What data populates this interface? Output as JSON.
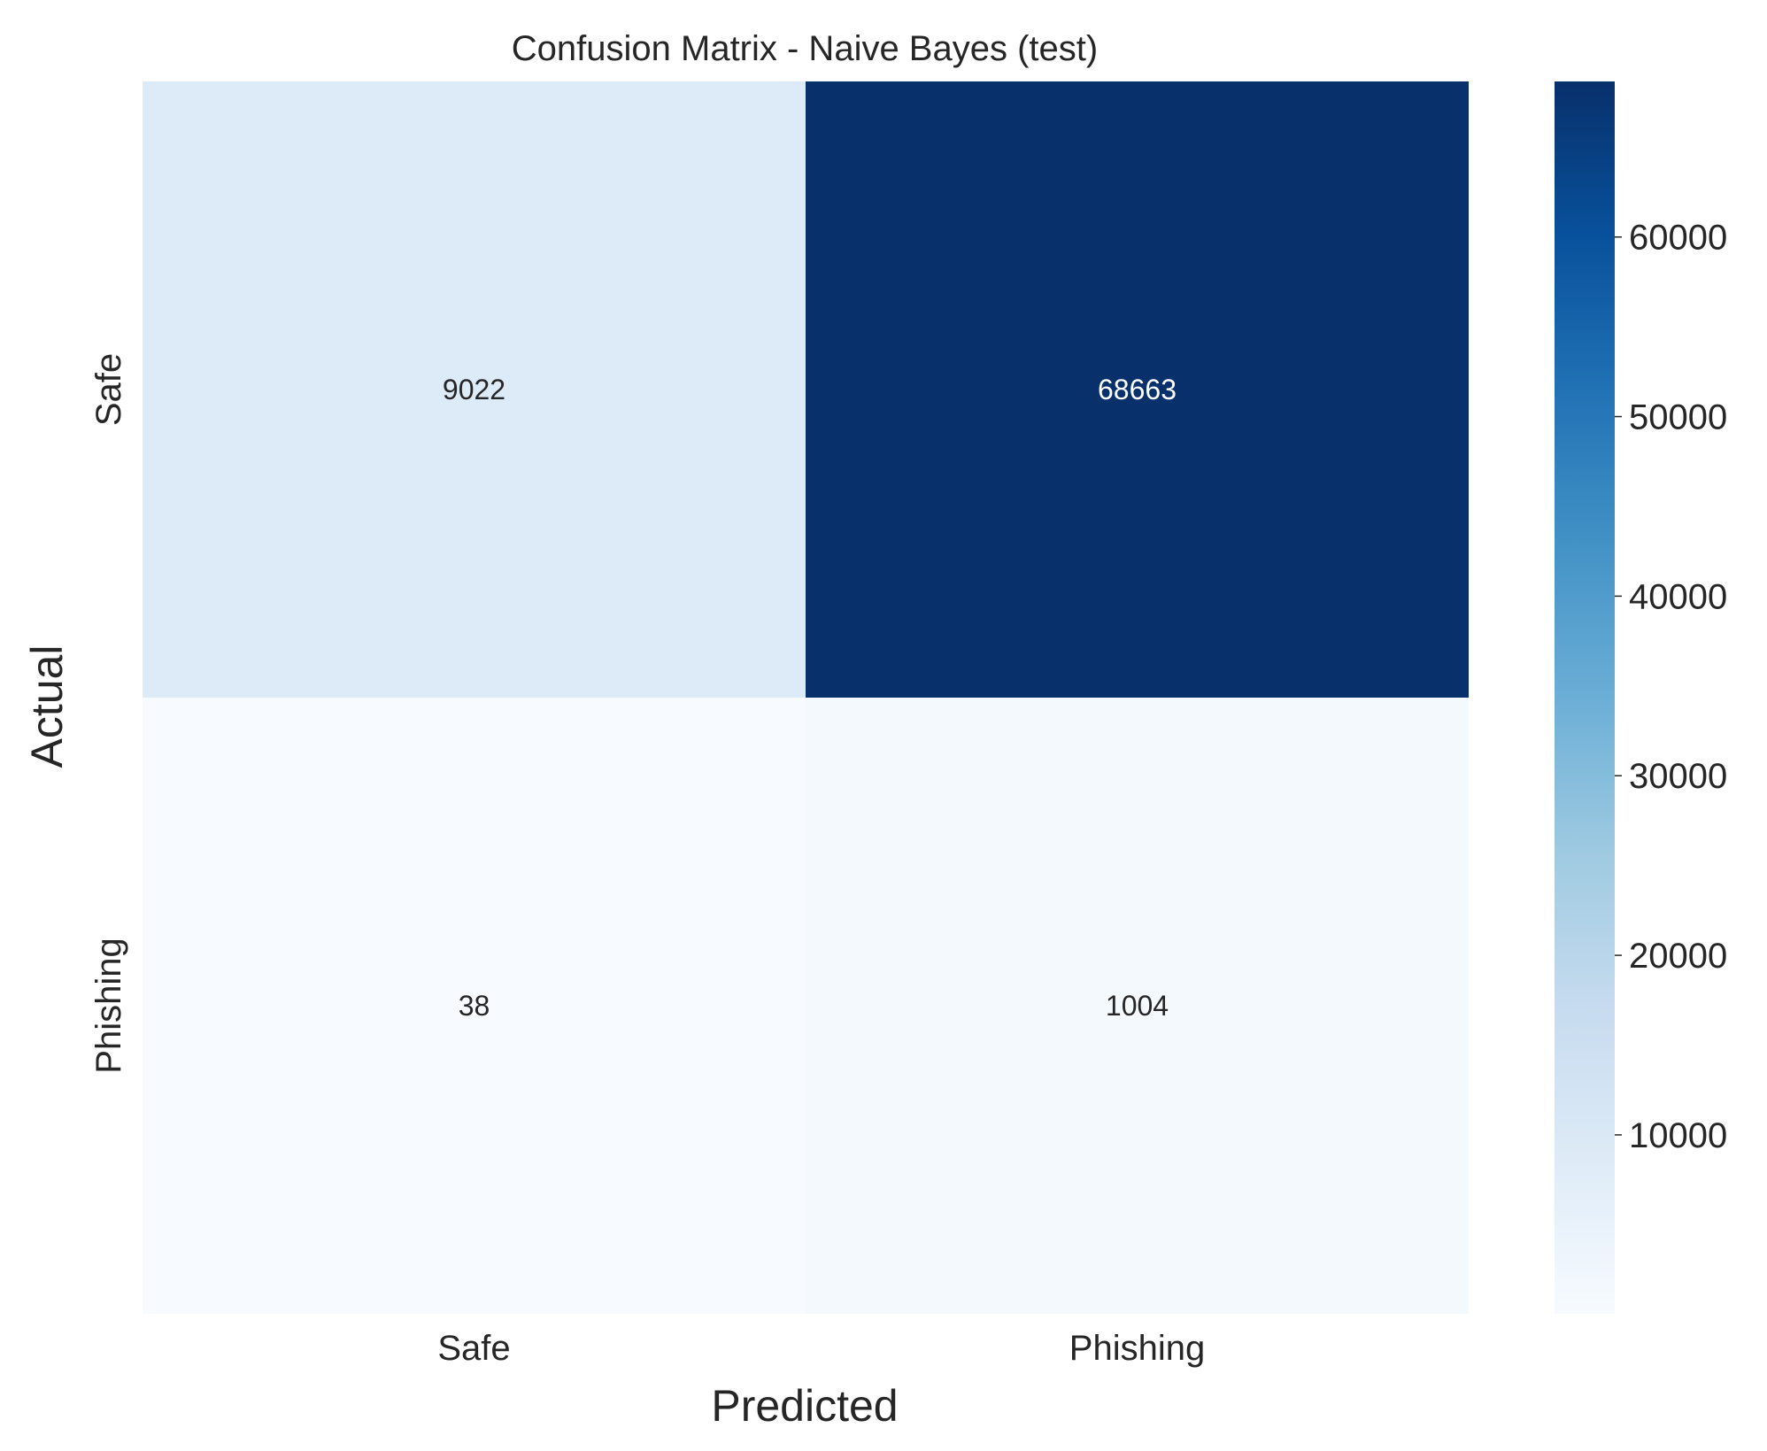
{
  "chart_data": {
    "type": "heatmap",
    "title": "Confusion Matrix - Naive Bayes (test)",
    "xlabel": "Predicted",
    "ylabel": "Actual",
    "x_categories": [
      "Safe",
      "Phishing"
    ],
    "y_categories": [
      "Safe",
      "Phishing"
    ],
    "values": [
      [
        9022,
        68663
      ],
      [
        38,
        1004
      ]
    ],
    "cell_labels": [
      [
        "9022",
        "68663"
      ],
      [
        "38",
        "1004"
      ]
    ],
    "colormap": "Blues",
    "colorbar": {
      "range": [
        38,
        68663
      ],
      "ticks": [
        10000,
        20000,
        30000,
        40000,
        50000,
        60000
      ],
      "tick_labels": [
        "10000",
        "20000",
        "30000",
        "40000",
        "50000",
        "60000"
      ]
    },
    "grid": false,
    "legend": "colorbar-right"
  }
}
